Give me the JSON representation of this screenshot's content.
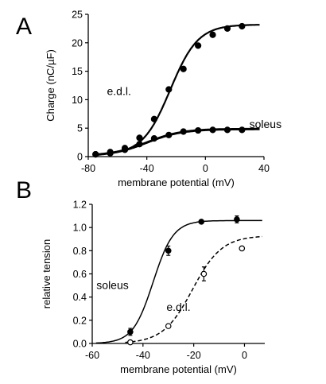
{
  "panels": [
    {
      "letter": "A",
      "chart_data": {
        "type": "line",
        "xlabel": "membrane  potential  (mV)",
        "ylabel": "Charge  (nC/µF)",
        "xlim": [
          -80,
          40
        ],
        "ylim": [
          0,
          25
        ],
        "xticks": [
          "-80",
          "-40",
          "0",
          "40"
        ],
        "xtick_values": [
          -80,
          -40,
          0,
          40
        ],
        "yticks": [
          "0",
          "5",
          "10",
          "15",
          "20",
          "25"
        ],
        "ytick_values": [
          0,
          5,
          10,
          15,
          20,
          25
        ],
        "grid": false,
        "series": [
          {
            "name": "e.d.l.",
            "marker": "filled",
            "x": [
              -75,
              -65,
              -55,
              -45,
              -35,
              -25,
              -15,
              -5,
              5,
              15,
              25
            ],
            "y": [
              0.4,
              0.8,
              1.5,
              3.3,
              6.6,
              11.8,
              15.4,
              19.5,
              21.4,
              22.5,
              22.9
            ],
            "fit": {
              "min": 0.3,
              "max": 23.2,
              "v_half": -24,
              "k": 9.5,
              "x_end": 37
            }
          },
          {
            "name": "soleus",
            "marker": "filled",
            "x": [
              -75,
              -65,
              -55,
              -45,
              -35,
              -25,
              -15,
              -5,
              5,
              15,
              25
            ],
            "y": [
              0.4,
              0.6,
              1.2,
              2.2,
              3.2,
              3.8,
              4.4,
              4.6,
              4.7,
              4.7,
              4.7
            ],
            "fit": {
              "min": 0.1,
              "max": 4.85,
              "v_half": -40,
              "k": 12,
              "x_end": 37
            }
          }
        ],
        "annotations": [
          {
            "text": "e.d.l.",
            "x": -59,
            "y": 10.8
          },
          {
            "text": "soleus",
            "x": 41,
            "y": 5.0
          }
        ]
      }
    },
    {
      "letter": "B",
      "chart_data": {
        "type": "line",
        "xlabel": "membrane  potential  (mV)",
        "ylabel": "relative  tension",
        "xlim": [
          -60,
          8
        ],
        "ylim": [
          0,
          1.2
        ],
        "xticks": [
          "-60",
          "-40",
          "-20",
          "0"
        ],
        "xtick_values": [
          -60,
          -40,
          -20,
          0
        ],
        "yticks": [
          "0.0",
          "0.2",
          "0.4",
          "0.6",
          "0.8",
          "1.0",
          "1.2"
        ],
        "ytick_values": [
          0,
          0.2,
          0.4,
          0.6,
          0.8,
          1.0,
          1.2
        ],
        "grid": false,
        "series": [
          {
            "name": "soleus",
            "marker": "filled",
            "line": "solid",
            "x": [
              -45,
              -30,
              -17,
              -3
            ],
            "y": [
              0.1,
              0.8,
              1.05,
              1.07
            ],
            "err": [
              0.03,
              0.04,
              0,
              0.03
            ],
            "fit": {
              "min": 0,
              "max": 1.06,
              "v_half": -36,
              "k": 4,
              "x_start": -58.5,
              "x_end": 7
            }
          },
          {
            "name": "e.d.l.",
            "marker": "open",
            "line": "dashed",
            "x": [
              -45,
              -30,
              -16,
              -1
            ],
            "y": [
              0.01,
              0.15,
              0.6,
              0.82
            ],
            "err": [
              0,
              0,
              0.06,
              0
            ],
            "fit": {
              "min": 0,
              "max": 0.93,
              "v_half": -20.5,
              "k": 5.8,
              "x_start": -47,
              "x_end": 7
            }
          }
        ],
        "annotations": [
          {
            "text": "soleus",
            "x": -52,
            "y": 0.47
          },
          {
            "text": "e.d.l.",
            "x": -26,
            "y": 0.28
          }
        ]
      }
    }
  ]
}
